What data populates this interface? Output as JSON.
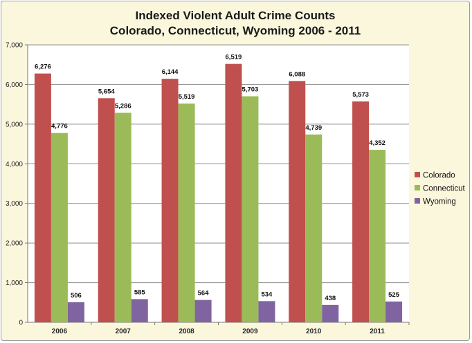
{
  "chart_data": {
    "type": "bar",
    "title": "Indexed Violent Adult Crime Counts",
    "subtitle": "Colorado, Connecticut, Wyoming 2006 - 2011",
    "xlabel": "",
    "ylabel": "",
    "categories": [
      "2006",
      "2007",
      "2008",
      "2009",
      "2010",
      "2011"
    ],
    "series": [
      {
        "name": "Colorado",
        "color": "#c0504d",
        "values": [
          6276,
          5654,
          6144,
          6519,
          6088,
          5573
        ]
      },
      {
        "name": "Connecticut",
        "color": "#9bbb59",
        "values": [
          4776,
          5286,
          5519,
          5703,
          4739,
          4352
        ]
      },
      {
        "name": "Wyoming",
        "color": "#8064a2",
        "values": [
          506,
          585,
          564,
          534,
          438,
          525
        ]
      }
    ],
    "ylim": [
      0,
      7000
    ],
    "yticks": [
      0,
      1000,
      2000,
      3000,
      4000,
      5000,
      6000,
      7000
    ],
    "grid": true,
    "legend": "right",
    "data_labels": true
  }
}
